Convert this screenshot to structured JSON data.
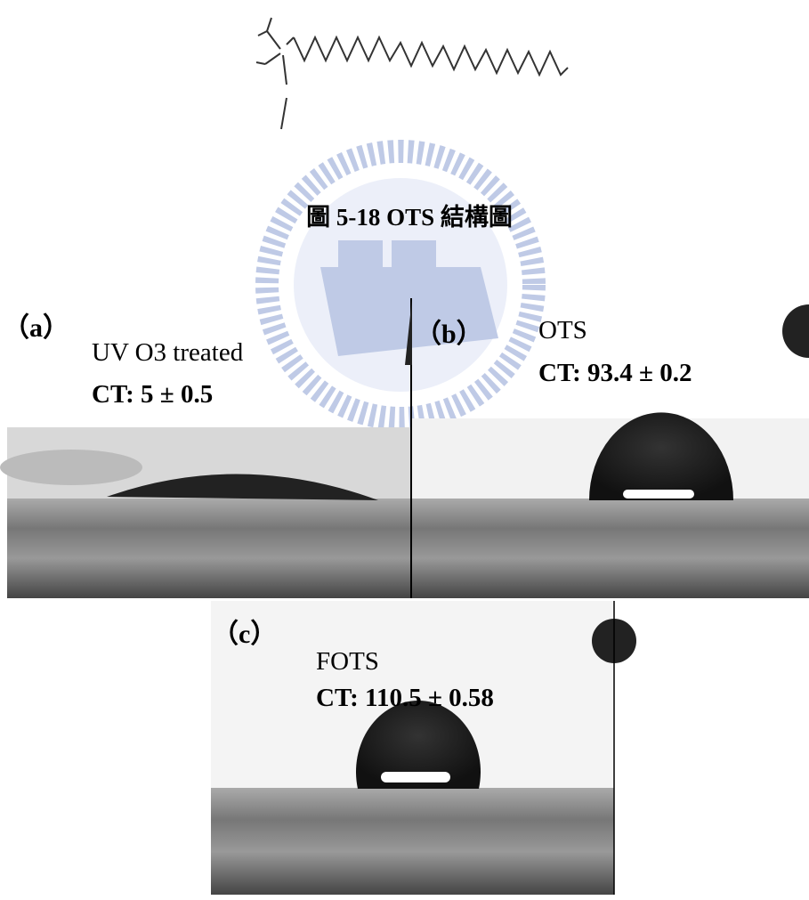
{
  "caption": "圖 5-18 OTS 結構圖",
  "panels": [
    {
      "label": "（a）",
      "treatment": "UV O3 treated",
      "contact_angle": "CT: 5 ± 0.5"
    },
    {
      "label": "（b）",
      "treatment": "OTS",
      "contact_angle": "CT: 93.4 ± 0.2"
    },
    {
      "label": "（c）",
      "treatment": "FOTS",
      "contact_angle": "CT: 110.5 ± 0.58"
    }
  ]
}
